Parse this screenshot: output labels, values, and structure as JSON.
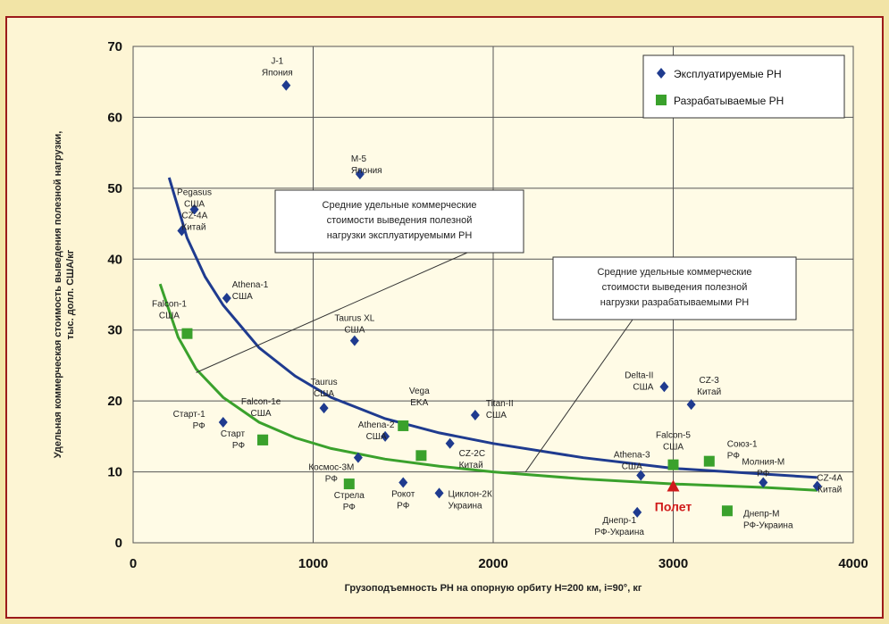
{
  "chart_data": {
    "type": "scatter",
    "xlabel": "Грузоподъемность РН на опорную орбиту H=200 км, i=90°, кг",
    "ylabel_lines": [
      "Удельная коммерческая стоимость выведения полезной нагрузки,",
      "тыс. долл. США/кг"
    ],
    "xlim": [
      0,
      4000
    ],
    "ylim": [
      0,
      70
    ],
    "x_ticks": [
      0,
      1000,
      2000,
      3000,
      4000
    ],
    "y_ticks": [
      0,
      10,
      20,
      30,
      40,
      50,
      60,
      70
    ],
    "grid": true,
    "legend_position": "top-right",
    "colors": {
      "operational": "#1f3b8f",
      "developing": "#3aa12c",
      "highlight": "#d01a1a"
    },
    "series": [
      {
        "name": "Эксплуатируемые РН",
        "marker": "diamond",
        "points": [
          {
            "x": 850,
            "y": 64.5,
            "label": [
              "J-1",
              "Япония"
            ]
          },
          {
            "x": 1260,
            "y": 52,
            "label": [
              "M-5",
              "Япония"
            ]
          },
          {
            "x": 340,
            "y": 47,
            "label": [
              "Pegasus",
              "США"
            ]
          },
          {
            "x": 270,
            "y": 44,
            "label": [
              "CZ-4A",
              "Китай"
            ]
          },
          {
            "x": 520,
            "y": 34.5,
            "label": [
              "Athena-1",
              "США"
            ]
          },
          {
            "x": 1230,
            "y": 28.5,
            "label": [
              "Taurus XL",
              "США"
            ]
          },
          {
            "x": 1060,
            "y": 19,
            "label": [
              "Taurus",
              "США"
            ]
          },
          {
            "x": 1400,
            "y": 15,
            "label": [
              "Athena-2",
              "США"
            ]
          },
          {
            "x": 1900,
            "y": 18,
            "label": [
              "Titan-II",
              "США"
            ]
          },
          {
            "x": 500,
            "y": 17,
            "label": [
              "Старт-1",
              "РФ"
            ]
          },
          {
            "x": 1250,
            "y": 12,
            "label": [
              "Космос-3М",
              "РФ"
            ]
          },
          {
            "x": 1500,
            "y": 8.5,
            "label": [
              "Рокот",
              "РФ"
            ]
          },
          {
            "x": 1700,
            "y": 7,
            "label": [
              "Циклон-2К",
              "Украина"
            ]
          },
          {
            "x": 1760,
            "y": 14,
            "label": [
              "CZ-2C",
              "Китай"
            ]
          },
          {
            "x": 2950,
            "y": 22,
            "label": [
              "Delta-II",
              "США"
            ]
          },
          {
            "x": 3100,
            "y": 19.5,
            "label": [
              "CZ-3",
              "Китай"
            ]
          },
          {
            "x": 2820,
            "y": 9.5,
            "label": [
              "Athena-3",
              "США"
            ]
          },
          {
            "x": 2800,
            "y": 4.3,
            "label": [
              "Днепр-1",
              "РФ-Украина"
            ]
          },
          {
            "x": 3500,
            "y": 8.5,
            "label": [
              "Молния-М",
              "РФ"
            ]
          },
          {
            "x": 3800,
            "y": 8,
            "label": [
              "CZ-4A",
              "Китай"
            ]
          }
        ]
      },
      {
        "name": "Разрабатываемые РН",
        "marker": "square",
        "points": [
          {
            "x": 300,
            "y": 29.5,
            "label": [
              "Falcon-1",
              "США"
            ]
          },
          {
            "x": 720,
            "y": 14.5,
            "label": [
              "Falcon-1e",
              "США"
            ]
          },
          {
            "x": 720,
            "y": 14.5,
            "label": [
              "Старт",
              "РФ"
            ]
          },
          {
            "x": 1500,
            "y": 16.5,
            "label": [
              "Vega",
              "EKA"
            ]
          },
          {
            "x": 1600,
            "y": 12.3,
            "label": [
              ""
            ]
          },
          {
            "x": 1200,
            "y": 8.3,
            "label": [
              "Стрела",
              "РФ"
            ]
          },
          {
            "x": 3000,
            "y": 11,
            "label": [
              "Falcon-5",
              "США"
            ]
          },
          {
            "x": 3200,
            "y": 11.5,
            "label": [
              "Союз-1",
              "РФ"
            ]
          },
          {
            "x": 3300,
            "y": 4.5,
            "label": [
              "Днепр-М",
              "РФ-Украина"
            ]
          }
        ]
      }
    ],
    "highlight_point": {
      "x": 3000,
      "y": 8,
      "label": "Полет"
    },
    "trend_curves": [
      {
        "series": "Эксплуатируемые РН",
        "points": [
          [
            200,
            51.5
          ],
          [
            300,
            43
          ],
          [
            400,
            37.5
          ],
          [
            500,
            33.5
          ],
          [
            700,
            27.5
          ],
          [
            900,
            23.5
          ],
          [
            1100,
            20.5
          ],
          [
            1400,
            17.5
          ],
          [
            1700,
            15.5
          ],
          [
            2000,
            14
          ],
          [
            2500,
            12
          ],
          [
            3000,
            10.5
          ],
          [
            3500,
            9.7
          ],
          [
            3800,
            9.2
          ]
        ]
      },
      {
        "series": "Разрабатываемые РН",
        "points": [
          [
            150,
            36.5
          ],
          [
            250,
            29
          ],
          [
            350,
            24.5
          ],
          [
            500,
            20.5
          ],
          [
            700,
            17
          ],
          [
            900,
            14.8
          ],
          [
            1100,
            13.3
          ],
          [
            1400,
            11.8
          ],
          [
            1700,
            10.8
          ],
          [
            2000,
            10
          ],
          [
            2500,
            9
          ],
          [
            3000,
            8.3
          ],
          [
            3500,
            7.8
          ],
          [
            3800,
            7.4
          ]
        ]
      }
    ],
    "annotations": [
      {
        "lines": [
          "Средние удельные коммерческие",
          "стоимости выведения полезной",
          "нагрузки эксплуатируемыми РН"
        ],
        "pointer_to": [
          350,
          24
        ]
      },
      {
        "lines": [
          "Средние удельные коммерческие",
          "стоимости выведения полезной",
          "нагрузки разрабатываемыми РН"
        ],
        "pointer_to": [
          2180,
          10
        ]
      }
    ]
  }
}
